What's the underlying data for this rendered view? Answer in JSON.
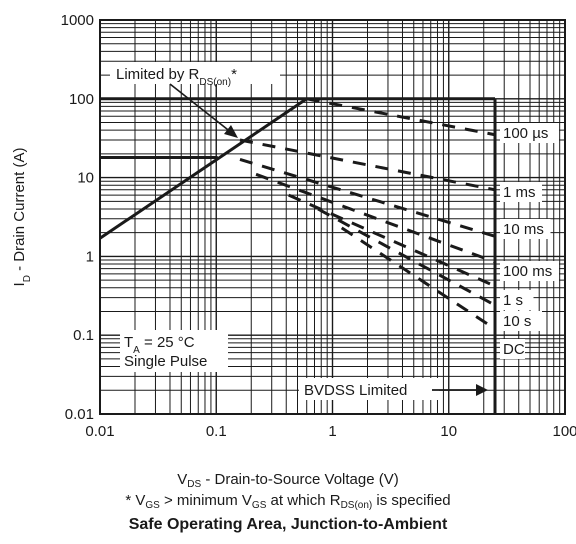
{
  "chart_data": {
    "type": "line",
    "title": "Safe Operating Area, Junction-to-Ambient",
    "xlabel": "V_DS - Drain-to-Source Voltage (V)",
    "ylabel": "I_D - Drain Current (A)",
    "footnote": "* V_GS > minimum V_GS at which R_DS(on) is specified",
    "x_scale": "log",
    "y_scale": "log",
    "xlim": [
      0.01,
      100
    ],
    "ylim": [
      0.01,
      1000
    ],
    "x_ticks": [
      "0.01",
      "0.1",
      "1",
      "10",
      "100"
    ],
    "y_ticks": [
      "0.01",
      "0.1",
      "1",
      "10",
      "100",
      "1000"
    ],
    "grid": true,
    "series": [
      {
        "name": "Limited by R_DS(on)*",
        "style": "solid",
        "x": [
          0.01,
          0.6
        ],
        "y": [
          1.7,
          100
        ]
      },
      {
        "name": "ID limit",
        "style": "solid",
        "x": [
          0.01,
          0.103
        ],
        "y": [
          18,
          18
        ]
      },
      {
        "name": "Package limit",
        "style": "solid",
        "x": [
          0.01,
          25
        ],
        "y": [
          100,
          100
        ]
      },
      {
        "name": "BVDSS Limited",
        "style": "solid",
        "x": [
          25,
          25
        ],
        "y": [
          100,
          0.01
        ]
      },
      {
        "name": "100 µs",
        "style": "dashed",
        "x": [
          0.6,
          25
        ],
        "y": [
          100,
          35
        ]
      },
      {
        "name": "1 ms",
        "style": "dashed",
        "x": [
          0.16,
          25
        ],
        "y": [
          30,
          7
        ]
      },
      {
        "name": "10 ms",
        "style": "dashed",
        "x": [
          0.16,
          25
        ],
        "y": [
          17,
          1.8
        ]
      },
      {
        "name": "100 ms",
        "style": "dashed",
        "x": [
          0.22,
          25
        ],
        "y": [
          11,
          0.85
        ]
      },
      {
        "name": "1 s",
        "style": "dashed",
        "x": [
          0.42,
          25
        ],
        "y": [
          6,
          0.42
        ]
      },
      {
        "name": "10 s",
        "style": "dashed",
        "x": [
          0.75,
          25
        ],
        "y": [
          4,
          0.24
        ]
      },
      {
        "name": "DC",
        "style": "dashed",
        "x": [
          1.2,
          25
        ],
        "y": [
          2.3,
          0.12
        ]
      }
    ],
    "annotations": {
      "rds_limit": "Limited by R_DS(on)*",
      "ta": "T_A = 25 °C",
      "pulse": "Single Pulse",
      "bvdss": "BVDSS Limited",
      "curve_labels": [
        "100 µs",
        "1 ms",
        "10 ms",
        "100 ms",
        "1 s",
        "10 s",
        "DC"
      ]
    }
  },
  "colors": {
    "line": "#1a1a1a",
    "grid": "#1a1a1a",
    "background": "#ffffff"
  }
}
